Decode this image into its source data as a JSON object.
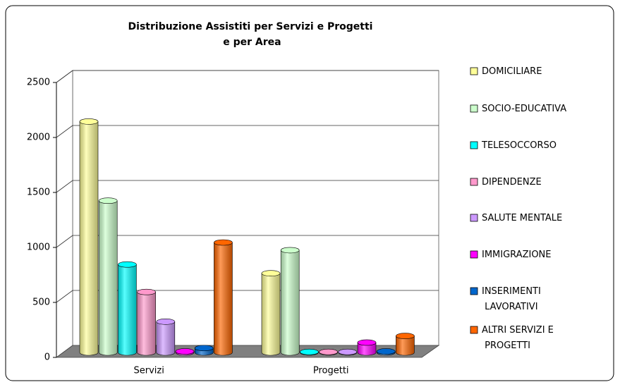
{
  "chart_data": {
    "type": "bar3d-cylinder",
    "title": "Distribuzione Assistiti per Servizi e Progetti e per Area",
    "categories": [
      "Servizi",
      "Progetti"
    ],
    "series": [
      {
        "name": "DOMICILIARE",
        "color": "#ffff99",
        "values": [
          2100,
          720
        ]
      },
      {
        "name": "SOCIO-EDUCATIVA",
        "color": "#ccffcc",
        "values": [
          1380,
          930
        ]
      },
      {
        "name": "TELESOCCORSO",
        "color": "#00ffff",
        "values": [
          800,
          5
        ]
      },
      {
        "name": "DIPENDENZE",
        "color": "#ff99cc",
        "values": [
          550,
          5
        ]
      },
      {
        "name": "SALUTE MENTALE",
        "color": "#cc99ff",
        "values": [
          280,
          5
        ]
      },
      {
        "name": "IMMIGRAZIONE",
        "color": "#ff00ff",
        "values": [
          10,
          90
        ]
      },
      {
        "name": "INSERIMENTI LAVORATIVI",
        "color": "#0066cc",
        "values": [
          40,
          10
        ]
      },
      {
        "name": "ALTRI SERVIZI E PROGETTI",
        "color": "#ff6600",
        "values": [
          1000,
          150
        ]
      }
    ],
    "ylim": [
      0,
      2500
    ],
    "yticks": [
      0,
      500,
      1000,
      1500,
      2000,
      2500
    ],
    "grid": true,
    "legend": "right"
  }
}
